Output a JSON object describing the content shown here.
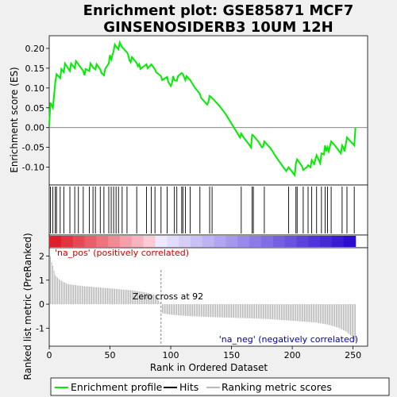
{
  "chart_data": {
    "type": "line",
    "title_line1": "Enrichment plot: GSE85871 MCF7",
    "title_line2": "GINSENOSIDERB3 10UM 12H",
    "xlabel": "Rank in Ordered Dataset",
    "ylabel_top": "Enrichment score (ES)",
    "ylabel_bottom": "Ranked list metric (PreRanked)",
    "xlim": [
      0,
      262
    ],
    "x_ticks": [
      0,
      50,
      100,
      150,
      200,
      250
    ],
    "es_ylim": [
      -0.145,
      0.232
    ],
    "es_y_ticks": [
      -0.1,
      -0.05,
      0.0,
      0.05,
      0.1,
      0.15,
      0.2
    ],
    "es_y_tick_labels": [
      "-0.10",
      "-0.05",
      "0.00",
      "0.05",
      "0.10",
      "0.15",
      "0.20"
    ],
    "metric_ylim": [
      -1.75,
      2.35
    ],
    "metric_y_ticks": [
      -1,
      0,
      1,
      2
    ],
    "metric_y_tick_labels": [
      "-1",
      "0",
      "1",
      "2"
    ],
    "hits": [
      1,
      3,
      5,
      6,
      9,
      12,
      17,
      21,
      24,
      28,
      33,
      36,
      38,
      42,
      45,
      49,
      51,
      53,
      55,
      57,
      60,
      64,
      72,
      80,
      84,
      87,
      92,
      97,
      103,
      105,
      109,
      110,
      112,
      116,
      124,
      132,
      134,
      158,
      167,
      168,
      177,
      197,
      203,
      204,
      209,
      213,
      216,
      220,
      224,
      227,
      229,
      232,
      241,
      245,
      251
    ],
    "es_points": [
      [
        0,
        0.005
      ],
      [
        1,
        0.063
      ],
      [
        3,
        0.05
      ],
      [
        5,
        0.115
      ],
      [
        6,
        0.135
      ],
      [
        9,
        0.125
      ],
      [
        10,
        0.148
      ],
      [
        12,
        0.14
      ],
      [
        13,
        0.162
      ],
      [
        17,
        0.143
      ],
      [
        18,
        0.162
      ],
      [
        21,
        0.15
      ],
      [
        22,
        0.168
      ],
      [
        24,
        0.16
      ],
      [
        28,
        0.143
      ],
      [
        29,
        0.132
      ],
      [
        30,
        0.148
      ],
      [
        33,
        0.143
      ],
      [
        34,
        0.162
      ],
      [
        36,
        0.152
      ],
      [
        38,
        0.147
      ],
      [
        39,
        0.16
      ],
      [
        42,
        0.147
      ],
      [
        43,
        0.138
      ],
      [
        45,
        0.132
      ],
      [
        46,
        0.148
      ],
      [
        49,
        0.162
      ],
      [
        50,
        0.183
      ],
      [
        51,
        0.172
      ],
      [
        53,
        0.193
      ],
      [
        54,
        0.21
      ],
      [
        55,
        0.205
      ],
      [
        57,
        0.198
      ],
      [
        58,
        0.215
      ],
      [
        60,
        0.203
      ],
      [
        64,
        0.19
      ],
      [
        65,
        0.183
      ],
      [
        66,
        0.17
      ],
      [
        67,
        0.165
      ],
      [
        68,
        0.178
      ],
      [
        72,
        0.163
      ],
      [
        73,
        0.155
      ],
      [
        74,
        0.16
      ],
      [
        75,
        0.148
      ],
      [
        80,
        0.16
      ],
      [
        81,
        0.15
      ],
      [
        84,
        0.16
      ],
      [
        87,
        0.147
      ],
      [
        88,
        0.14
      ],
      [
        92,
        0.13
      ],
      [
        93,
        0.12
      ],
      [
        97,
        0.128
      ],
      [
        98,
        0.115
      ],
      [
        100,
        0.105
      ],
      [
        101,
        0.112
      ],
      [
        102,
        0.13
      ],
      [
        103,
        0.12
      ],
      [
        105,
        0.118
      ],
      [
        106,
        0.13
      ],
      [
        109,
        0.138
      ],
      [
        110,
        0.135
      ],
      [
        112,
        0.12
      ],
      [
        113,
        0.13
      ],
      [
        116,
        0.12
      ],
      [
        120,
        0.1
      ],
      [
        124,
        0.085
      ],
      [
        125,
        0.075
      ],
      [
        130,
        0.058
      ],
      [
        131,
        0.065
      ],
      [
        132,
        0.08
      ],
      [
        134,
        0.075
      ],
      [
        140,
        0.055
      ],
      [
        145,
        0.035
      ],
      [
        150,
        0.01
      ],
      [
        157,
        -0.025
      ],
      [
        158,
        -0.015
      ],
      [
        160,
        -0.025
      ],
      [
        165,
        -0.045
      ],
      [
        166,
        -0.05
      ],
      [
        167,
        -0.018
      ],
      [
        168,
        -0.02
      ],
      [
        172,
        -0.035
      ],
      [
        175,
        -0.05
      ],
      [
        176,
        -0.048
      ],
      [
        177,
        -0.035
      ],
      [
        182,
        -0.052
      ],
      [
        188,
        -0.08
      ],
      [
        195,
        -0.11
      ],
      [
        197,
        -0.1
      ],
      [
        200,
        -0.112
      ],
      [
        202,
        -0.12
      ],
      [
        203,
        -0.09
      ],
      [
        204,
        -0.08
      ],
      [
        208,
        -0.098
      ],
      [
        209,
        -0.107
      ],
      [
        212,
        -0.1
      ],
      [
        213,
        -0.095
      ],
      [
        215,
        -0.1
      ],
      [
        216,
        -0.082
      ],
      [
        218,
        -0.092
      ],
      [
        220,
        -0.07
      ],
      [
        223,
        -0.09
      ],
      [
        224,
        -0.065
      ],
      [
        226,
        -0.068
      ],
      [
        227,
        -0.045
      ],
      [
        228,
        -0.06
      ],
      [
        229,
        -0.05
      ],
      [
        230,
        -0.06
      ],
      [
        232,
        -0.035
      ],
      [
        235,
        -0.045
      ],
      [
        240,
        -0.065
      ],
      [
        241,
        -0.045
      ],
      [
        242,
        -0.05
      ],
      [
        243,
        -0.06
      ],
      [
        245,
        -0.025
      ],
      [
        251,
        -0.045
      ],
      [
        252,
        0.0
      ]
    ],
    "metric_points": [
      [
        1,
        2.0
      ],
      [
        2,
        1.75
      ],
      [
        3,
        1.6
      ],
      [
        5,
        1.2
      ],
      [
        7,
        1.1
      ],
      [
        9,
        1.0
      ],
      [
        12,
        0.92
      ],
      [
        15,
        0.84
      ],
      [
        20,
        0.8
      ],
      [
        30,
        0.74
      ],
      [
        40,
        0.7
      ],
      [
        50,
        0.66
      ],
      [
        60,
        0.61
      ],
      [
        70,
        0.57
      ],
      [
        80,
        0.48
      ],
      [
        88,
        0.38
      ],
      [
        91,
        0.06
      ],
      [
        92,
        0.0
      ],
      [
        93,
        -0.38
      ],
      [
        100,
        -0.44
      ],
      [
        110,
        -0.48
      ],
      [
        125,
        -0.52
      ],
      [
        140,
        -0.55
      ],
      [
        160,
        -0.58
      ],
      [
        180,
        -0.62
      ],
      [
        200,
        -0.69
      ],
      [
        220,
        -0.77
      ],
      [
        230,
        -0.86
      ],
      [
        238,
        -0.98
      ],
      [
        244,
        -1.13
      ],
      [
        248,
        -1.3
      ],
      [
        251,
        -1.5
      ],
      [
        252,
        -1.55
      ]
    ],
    "zero_cross": 92,
    "zero_cross_label": "Zero cross at 92",
    "pos_label": "'na_pos' (positively correlated)",
    "neg_label": "'na_neg' (negatively correlated)",
    "legend": [
      "Enrichment profile",
      "Hits",
      "Ranking metric scores"
    ],
    "colors": {
      "enrichment": "#00ee00",
      "hits": "#000000",
      "metric": "#a0a0a0",
      "pos_text": "#cc0000",
      "neg_text": "#0000aa",
      "zero_line": "#888888"
    }
  }
}
